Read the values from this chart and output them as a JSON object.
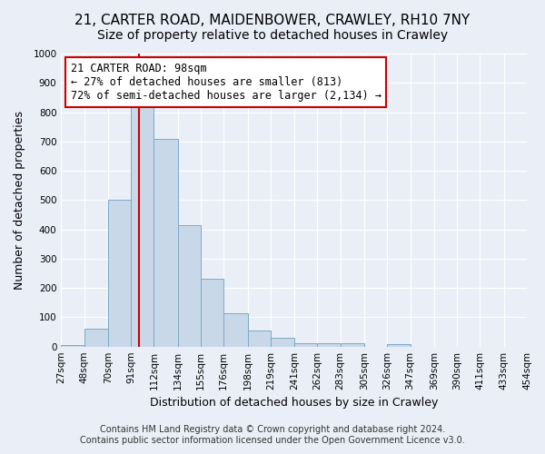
{
  "title_line1": "21, CARTER ROAD, MAIDENBOWER, CRAWLEY, RH10 7NY",
  "title_line2": "Size of property relative to detached houses in Crawley",
  "xlabel": "Distribution of detached houses by size in Crawley",
  "ylabel": "Number of detached properties",
  "bar_edges": [
    27,
    48,
    70,
    91,
    112,
    134,
    155,
    176,
    198,
    219,
    241,
    262,
    283,
    305,
    326,
    347,
    369,
    390,
    411,
    433,
    454
  ],
  "bar_heights": [
    5,
    60,
    500,
    820,
    710,
    415,
    230,
    115,
    55,
    30,
    12,
    10,
    10,
    0,
    8,
    0,
    0,
    0,
    0,
    0
  ],
  "bar_color": "#c8d8e8",
  "bar_edgecolor": "#7aaac8",
  "property_size": 98,
  "red_line_color": "#cc0000",
  "annotation_text": "21 CARTER ROAD: 98sqm\n← 27% of detached houses are smaller (813)\n72% of semi-detached houses are larger (2,134) →",
  "annotation_box_edgecolor": "#cc0000",
  "annotation_box_facecolor": "white",
  "ylim": [
    0,
    1000
  ],
  "yticks": [
    0,
    100,
    200,
    300,
    400,
    500,
    600,
    700,
    800,
    900,
    1000
  ],
  "tick_labels": [
    "27sqm",
    "48sqm",
    "70sqm",
    "91sqm",
    "112sqm",
    "134sqm",
    "155sqm",
    "176sqm",
    "198sqm",
    "219sqm",
    "241sqm",
    "262sqm",
    "283sqm",
    "305sqm",
    "326sqm",
    "347sqm",
    "369sqm",
    "390sqm",
    "411sqm",
    "433sqm",
    "454sqm"
  ],
  "footer_line1": "Contains HM Land Registry data © Crown copyright and database right 2024.",
  "footer_line2": "Contains public sector information licensed under the Open Government Licence v3.0.",
  "bg_color": "#eaeff7",
  "plot_bg_color": "#eaeff7",
  "title_fontsize": 11,
  "subtitle_fontsize": 10,
  "axis_label_fontsize": 9,
  "tick_fontsize": 7.5,
  "footer_fontsize": 7
}
